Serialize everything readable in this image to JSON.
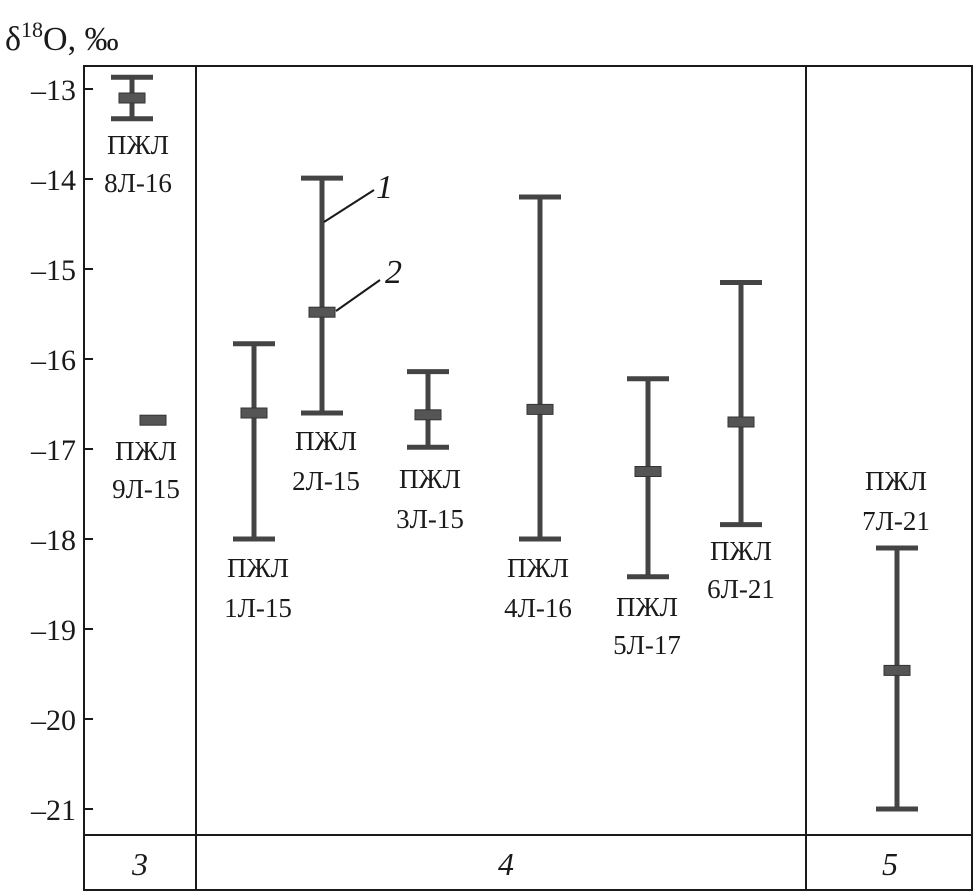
{
  "chart_data": {
    "type": "errorbar",
    "title": "",
    "ylabel": {
      "prefix": "δ",
      "superscript": "18",
      "suffix": "O, ‰"
    },
    "xlabel": "",
    "ylim": [
      -21.3,
      -12.8
    ],
    "yticks": [
      -13,
      -14,
      -15,
      -16,
      -17,
      -18,
      -19,
      -20,
      -21
    ],
    "ytick_labels": [
      "–13",
      "–14",
      "–15",
      "–16",
      "–17",
      "–18",
      "–19",
      "–20",
      "–21"
    ],
    "grid": false,
    "groups": [
      {
        "label": "3"
      },
      {
        "label": "4"
      },
      {
        "label": "5"
      }
    ],
    "samples": [
      {
        "line1": "ПЖЛ",
        "line2": "8Л-16",
        "group": 0,
        "mean": -13.1,
        "max": -12.87,
        "min": -13.33
      },
      {
        "line1": "ПЖЛ",
        "line2": "9Л-15",
        "group": 0,
        "mean": -16.68,
        "max": -16.68,
        "min": -16.68
      },
      {
        "line1": "ПЖЛ",
        "line2": "1Л-15",
        "group": 1,
        "mean": -16.6,
        "max": -15.83,
        "min": -18.0
      },
      {
        "line1": "ПЖЛ",
        "line2": "2Л-15",
        "group": 1,
        "mean": -15.48,
        "max": -13.99,
        "min": -16.6
      },
      {
        "line1": "ПЖЛ",
        "line2": "3Л-15",
        "group": 1,
        "mean": -16.62,
        "max": -16.14,
        "min": -16.98
      },
      {
        "line1": "ПЖЛ",
        "line2": "4Л-16",
        "group": 1,
        "mean": -16.56,
        "max": -14.2,
        "min": -18.0
      },
      {
        "line1": "ПЖЛ",
        "line2": "5Л-17",
        "group": 1,
        "mean": -17.25,
        "max": -16.22,
        "min": -18.42
      },
      {
        "line1": "ПЖЛ",
        "line2": "6Л-21",
        "group": 1,
        "mean": -16.7,
        "max": -15.15,
        "min": -17.84
      },
      {
        "line1": "ПЖЛ",
        "line2": "7Л-21",
        "group": 2,
        "mean": -19.46,
        "max": -18.1,
        "min": -21.0
      }
    ],
    "annotations": [
      {
        "label": "1",
        "meaning_target": "range"
      },
      {
        "label": "2",
        "meaning_target": "mean"
      }
    ],
    "colors": {
      "bar": "#444444",
      "mean_marker": "#555555",
      "frame": "#1a1a1a"
    }
  }
}
